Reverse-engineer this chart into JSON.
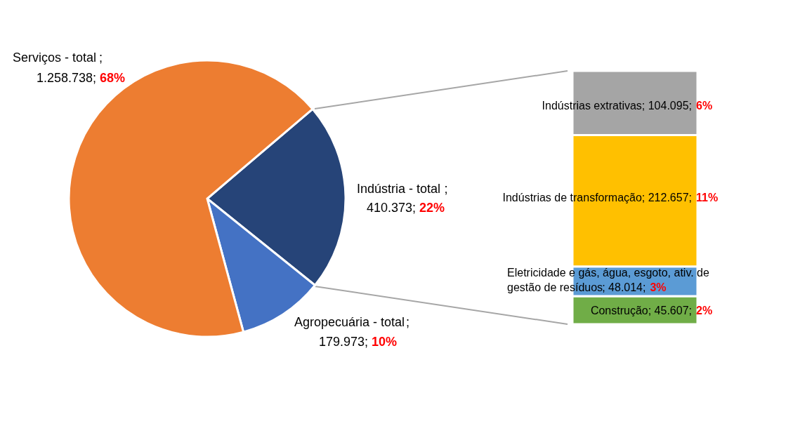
{
  "chart_data": [
    {
      "type": "pie",
      "categories": [
        "Indústria - total",
        "Agropecuária - total",
        "Serviços - total"
      ],
      "values": [
        22,
        10,
        68
      ],
      "colors": [
        "#264478",
        "#4472c4",
        "#ed7d31"
      ],
      "value_labels": [
        "22%",
        "10%",
        "68%"
      ],
      "annotations": [
        "410.373;",
        "179.973;",
        "1.258.738;",
        ";",
        ";",
        ";"
      ]
    },
    {
      "type": "bar",
      "stacked": true,
      "categories": [
        null
      ],
      "tick_labels": false,
      "series": [
        {
          "name": "Construção",
          "color": "#70ad47",
          "values": [
            45607
          ],
          "value_labels": [
            "45.607;"
          ]
        },
        {
          "name": "Eletricidade e gás, água, esgoto, ativ. de gestão de resíduos",
          "color": "#5b9bd5",
          "values": [
            48014
          ],
          "value_labels": [
            "48.014;"
          ]
        },
        {
          "name": "Indústrias de transformação",
          "color": "#ffc000",
          "values": [
            212657
          ],
          "value_labels": [
            "212.657;"
          ]
        },
        {
          "name": "Indústrias extrativas",
          "color": "#a5a5a5",
          "values": [
            104095
          ],
          "value_labels": [
            "104.095;"
          ]
        }
      ],
      "annotations": [
        "2%",
        "3%",
        "11%",
        "6%",
        ";",
        ";",
        ";",
        ";"
      ]
    }
  ]
}
